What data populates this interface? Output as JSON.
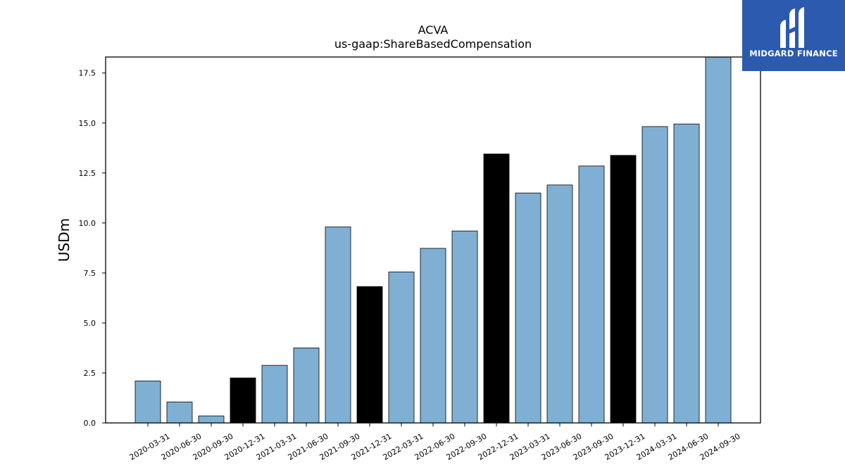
{
  "chart_data": {
    "type": "bar",
    "title": "ACVA",
    "subtitle": "us-gaap:ShareBasedCompensation",
    "xlabel": "",
    "ylabel": "USDm",
    "ylim": [
      0,
      18.3
    ],
    "yticks": [
      "0.0",
      "2.5",
      "5.0",
      "7.5",
      "10.0",
      "12.5",
      "15.0",
      "17.5"
    ],
    "grid": false,
    "categories": [
      "2020-03-31",
      "2020-06-30",
      "2020-09-30",
      "2020-12-31",
      "2021-03-31",
      "2021-06-30",
      "2021-09-30",
      "2021-12-31",
      "2022-03-31",
      "2022-06-30",
      "2022-09-30",
      "2022-12-31",
      "2023-03-31",
      "2023-06-30",
      "2023-09-30",
      "2023-12-31",
      "2024-03-31",
      "2024-06-30",
      "2024-09-30"
    ],
    "values": [
      2.1,
      1.05,
      0.35,
      2.25,
      2.88,
      3.75,
      9.8,
      6.82,
      7.55,
      8.73,
      9.6,
      13.45,
      11.5,
      11.9,
      12.85,
      13.38,
      14.82,
      14.95,
      18.3
    ],
    "colors": [
      "#7fb0d4",
      "#7fb0d4",
      "#7fb0d4",
      "#000000",
      "#7fb0d4",
      "#7fb0d4",
      "#7fb0d4",
      "#000000",
      "#7fb0d4",
      "#7fb0d4",
      "#7fb0d4",
      "#000000",
      "#7fb0d4",
      "#7fb0d4",
      "#7fb0d4",
      "#000000",
      "#7fb0d4",
      "#7fb0d4",
      "#7fb0d4"
    ]
  },
  "logo": {
    "text": "MIDGARD FINANCE",
    "background": "#2b5aae",
    "icon": "midgard-logo-icon"
  }
}
